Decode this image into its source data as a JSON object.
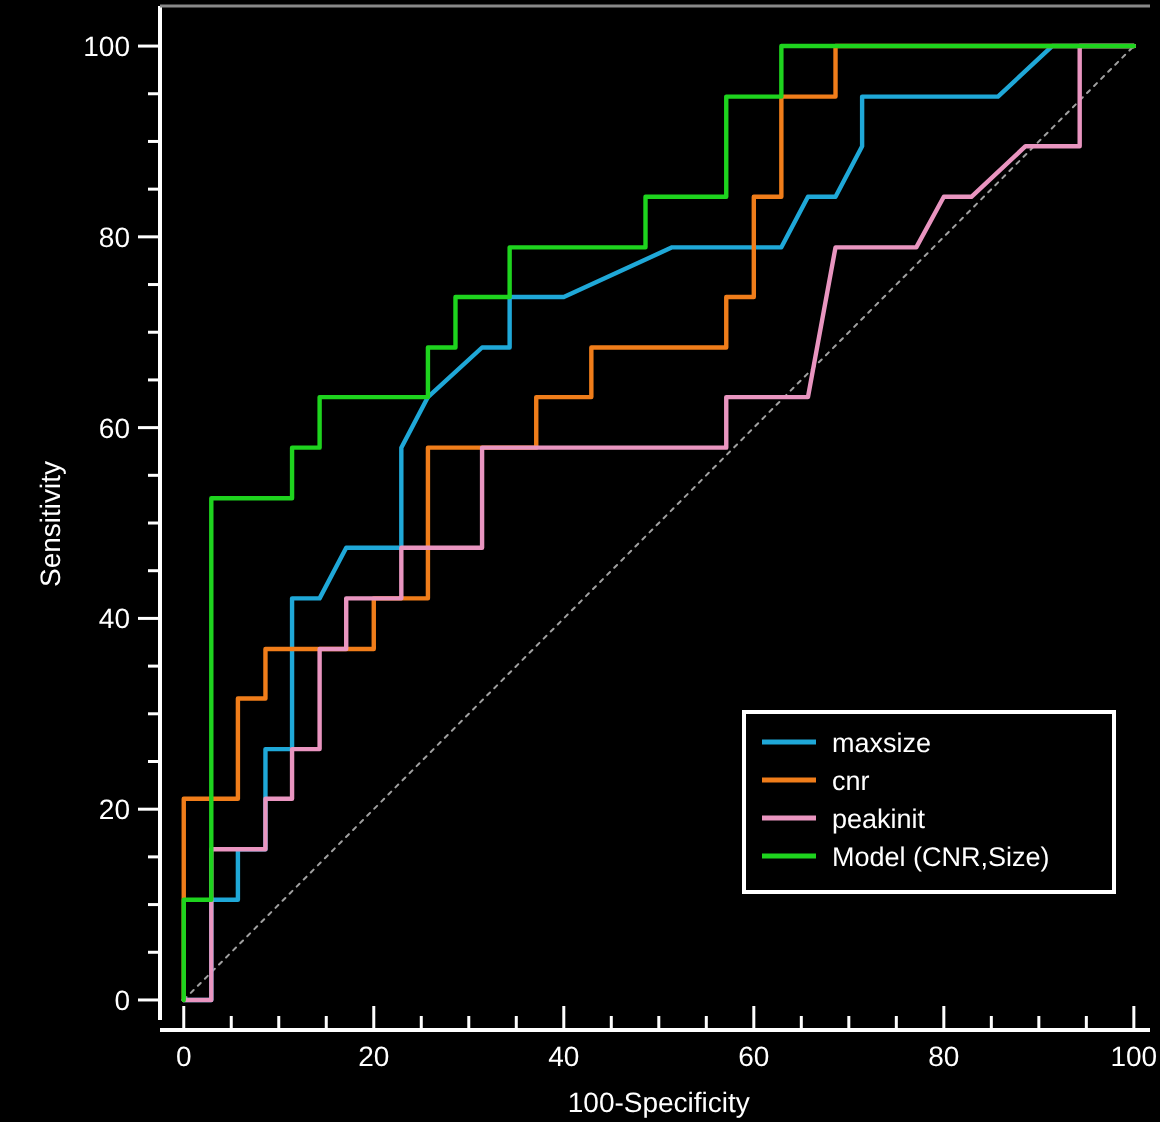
{
  "chart_data": {
    "type": "line",
    "xlabel": "100-Specificity",
    "ylabel": "Sensitivity",
    "xlim": [
      -2.5,
      101.7
    ],
    "ylim": [
      -2.1,
      104.2
    ],
    "xticks": [
      0,
      {
        "value": 5,
        "label": null
      },
      {
        "value": 10,
        "label": null
      },
      {
        "value": 15,
        "label": null
      },
      20,
      {
        "value": 25,
        "label": null
      },
      {
        "value": 30,
        "label": null
      },
      {
        "value": 35,
        "label": null
      },
      40,
      {
        "value": 45,
        "label": null
      },
      {
        "value": 50,
        "label": null
      },
      {
        "value": 55,
        "label": null
      },
      60,
      {
        "value": 65,
        "label": null
      },
      {
        "value": 70,
        "label": null
      },
      {
        "value": 75,
        "label": null
      },
      80,
      {
        "value": 85,
        "label": null
      },
      {
        "value": 90,
        "label": null
      },
      {
        "value": 95,
        "label": null
      },
      100
    ],
    "yticks": [
      0,
      {
        "value": 5,
        "label": null
      },
      {
        "value": 10,
        "label": null
      },
      {
        "value": 15,
        "label": null
      },
      20,
      {
        "value": 25,
        "label": null
      },
      {
        "value": 30,
        "label": null
      },
      {
        "value": 35,
        "label": null
      },
      40,
      {
        "value": 45,
        "label": null
      },
      {
        "value": 50,
        "label": null
      },
      {
        "value": 55,
        "label": null
      },
      60,
      {
        "value": 65,
        "label": null
      },
      {
        "value": 70,
        "label": null
      },
      {
        "value": 75,
        "label": null
      },
      80,
      {
        "value": 85,
        "label": null
      },
      {
        "value": 90,
        "label": null
      },
      {
        "value": 95,
        "label": null
      },
      100
    ],
    "grid": false,
    "legend": "bottom right",
    "marker": "none",
    "series": [
      {
        "color": "#a0a0a0",
        "line_style": "dotted",
        "x": [
          0,
          100
        ],
        "values": [
          0,
          100
        ]
      },
      {
        "name": "maxsize",
        "color": "#1fa8d8",
        "x": [
          0,
          2.9,
          2.9,
          5.7,
          5.7,
          8.6,
          8.6,
          11.4,
          11.4,
          14.3,
          17.1,
          22.9,
          22.9,
          25.7,
          31.4,
          34.3,
          34.3,
          40,
          51.4,
          62.9,
          65.7,
          68.6,
          71.4,
          71.4,
          85.7,
          91.4,
          100
        ],
        "values": [
          0,
          0,
          10.5,
          10.5,
          15.8,
          15.8,
          26.3,
          26.3,
          42.1,
          42.1,
          47.4,
          47.4,
          57.9,
          63.2,
          68.4,
          68.4,
          73.7,
          73.7,
          78.9,
          78.9,
          84.2,
          84.2,
          89.5,
          94.7,
          94.7,
          100,
          100
        ]
      },
      {
        "name": "cnr",
        "color": "#f07d1a",
        "x": [
          0,
          0,
          5.7,
          5.7,
          8.6,
          8.6,
          20,
          20,
          25.7,
          25.7,
          37.1,
          37.1,
          42.9,
          42.9,
          57.1,
          57.1,
          60,
          60,
          62.9,
          62.9,
          68.6,
          68.6,
          100
        ],
        "values": [
          0,
          21.1,
          21.1,
          31.6,
          31.6,
          36.8,
          36.8,
          42.1,
          42.1,
          57.9,
          57.9,
          63.2,
          63.2,
          68.4,
          68.4,
          73.7,
          73.7,
          84.2,
          84.2,
          94.7,
          94.7,
          100,
          100
        ]
      },
      {
        "name": "peakinit",
        "color": "#e995c0",
        "x": [
          0,
          2.9,
          2.9,
          8.6,
          8.6,
          11.4,
          11.4,
          14.3,
          14.3,
          17.1,
          17.1,
          22.9,
          22.9,
          31.4,
          31.4,
          57.1,
          57.1,
          65.7,
          68.6,
          77.1,
          80,
          82.9,
          88.6,
          94.3,
          94.3,
          100
        ],
        "values": [
          0,
          0,
          15.8,
          15.8,
          21.1,
          21.1,
          26.3,
          26.3,
          36.8,
          36.8,
          42.1,
          42.1,
          47.4,
          47.4,
          57.9,
          57.9,
          63.2,
          63.2,
          78.9,
          78.9,
          84.2,
          84.2,
          89.5,
          89.5,
          100,
          100
        ]
      },
      {
        "name": "Model (CNR,Size)",
        "color": "#1ed41e",
        "x": [
          0,
          0,
          2.9,
          2.9,
          11.4,
          11.4,
          14.3,
          14.3,
          25.7,
          25.7,
          28.6,
          28.6,
          34.3,
          34.3,
          48.6,
          48.6,
          57.1,
          57.1,
          62.9,
          62.9,
          100
        ],
        "values": [
          0,
          10.5,
          10.5,
          52.6,
          52.6,
          57.9,
          57.9,
          63.2,
          63.2,
          68.4,
          68.4,
          73.7,
          73.7,
          78.9,
          78.9,
          84.2,
          84.2,
          94.7,
          94.7,
          100,
          100
        ]
      }
    ]
  }
}
